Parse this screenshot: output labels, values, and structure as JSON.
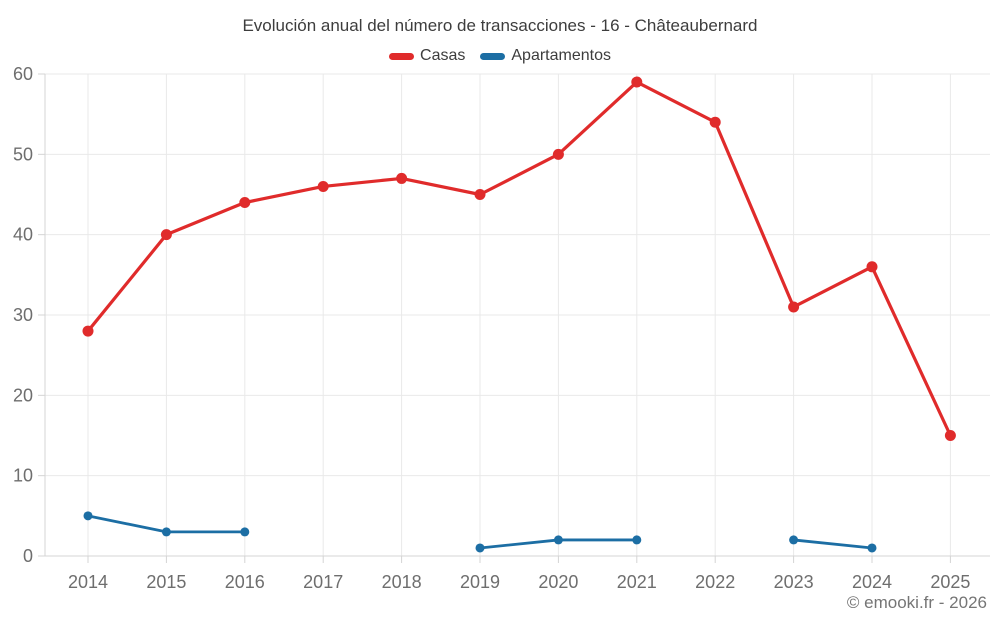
{
  "chart_data": {
    "type": "line",
    "title": "Evolución anual del número de transacciones - 16 - Châteaubernard",
    "categories": [
      "2014",
      "2015",
      "2016",
      "2017",
      "2018",
      "2019",
      "2020",
      "2021",
      "2022",
      "2023",
      "2024",
      "2025"
    ],
    "series": [
      {
        "name": "Casas",
        "color": "#e02b2b",
        "values": [
          28,
          40,
          44,
          46,
          47,
          45,
          50,
          59,
          54,
          31,
          36,
          15
        ]
      },
      {
        "name": "Apartamentos",
        "color": "#1c6ea4",
        "values": [
          5,
          3,
          3,
          null,
          null,
          1,
          2,
          2,
          null,
          2,
          1,
          null
        ]
      }
    ],
    "ylim": [
      0,
      60
    ],
    "yticks": [
      0,
      10,
      20,
      30,
      40,
      50,
      60
    ],
    "grid": true,
    "legend_position": "top",
    "grid_color": "#e9e9e9",
    "axis_color": "#d4d4d4"
  },
  "footer": {
    "text": "© emooki.fr - 2026"
  }
}
